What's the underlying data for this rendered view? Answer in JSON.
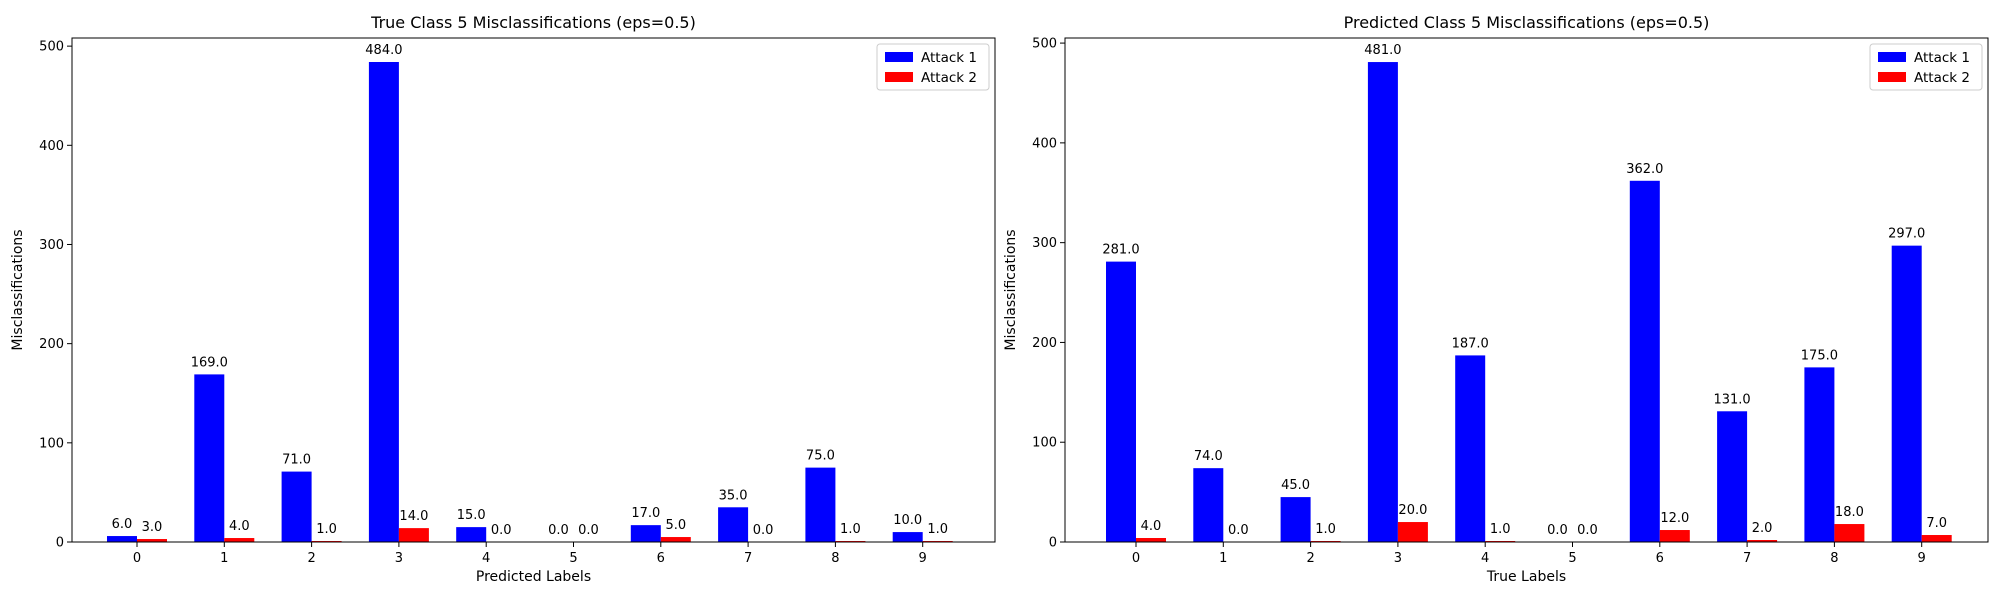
{
  "chart_data": [
    {
      "type": "bar",
      "title": "True Class 5 Misclassifications (eps=0.5)",
      "xlabel": "Predicted Labels",
      "ylabel": "Misclassifications",
      "categories": [
        "0",
        "1",
        "2",
        "3",
        "4",
        "5",
        "6",
        "7",
        "8",
        "9"
      ],
      "series": [
        {
          "name": "Attack 1",
          "color": "#0000ff",
          "values": [
            6.0,
            169.0,
            71.0,
            484.0,
            15.0,
            0.0,
            17.0,
            35.0,
            75.0,
            10.0
          ],
          "labels": [
            "6.0",
            "169.0",
            "71.0",
            "484.0",
            "15.0",
            "0.0",
            "17.0",
            "35.0",
            "75.0",
            "10.0"
          ]
        },
        {
          "name": "Attack 2",
          "color": "#ff0000",
          "values": [
            3.0,
            4.0,
            1.0,
            14.0,
            0.0,
            0.0,
            5.0,
            0.0,
            1.0,
            1.0
          ],
          "labels": [
            "3.0",
            "4.0",
            "1.0",
            "14.0",
            "0.0",
            "0.0",
            "5.0",
            "0.0",
            "1.0",
            "1.0"
          ]
        }
      ],
      "ylim": [
        0,
        508.2
      ],
      "yticks": [
        0,
        100,
        200,
        300,
        400,
        500
      ],
      "legend": "top-right",
      "grid": false
    },
    {
      "type": "bar",
      "title": "Predicted Class 5 Misclassifications (eps=0.5)",
      "xlabel": "True Labels",
      "ylabel": "Misclassifications",
      "categories": [
        "0",
        "1",
        "2",
        "3",
        "4",
        "5",
        "6",
        "7",
        "8",
        "9"
      ],
      "series": [
        {
          "name": "Attack 1",
          "color": "#0000ff",
          "values": [
            281.0,
            74.0,
            45.0,
            481.0,
            187.0,
            0.0,
            362.0,
            131.0,
            175.0,
            297.0
          ],
          "labels": [
            "281.0",
            "74.0",
            "45.0",
            "481.0",
            "187.0",
            "0.0",
            "362.0",
            "131.0",
            "175.0",
            "297.0"
          ]
        },
        {
          "name": "Attack 2",
          "color": "#ff0000",
          "values": [
            4.0,
            0.0,
            1.0,
            20.0,
            1.0,
            0.0,
            12.0,
            2.0,
            18.0,
            7.0
          ],
          "labels": [
            "4.0",
            "0.0",
            "1.0",
            "20.0",
            "1.0",
            "0.0",
            "12.0",
            "2.0",
            "18.0",
            "7.0"
          ]
        }
      ],
      "ylim": [
        0,
        505.1
      ],
      "yticks": [
        0,
        100,
        200,
        300,
        400,
        500
      ],
      "legend": "top-right",
      "grid": false
    }
  ]
}
